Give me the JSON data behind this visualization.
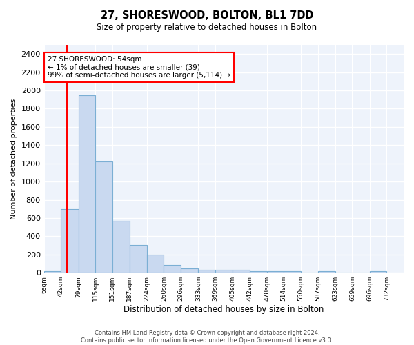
{
  "title1": "27, SHORESWOOD, BOLTON, BL1 7DD",
  "title2": "Size of property relative to detached houses in Bolton",
  "xlabel": "Distribution of detached houses by size in Bolton",
  "ylabel": "Number of detached properties",
  "bar_color": "#c9d9f0",
  "bar_edge_color": "#7bafd4",
  "background_color": "#eef3fb",
  "grid_color": "#ffffff",
  "annotation_text": "27 SHORESWOOD: 54sqm\n← 1% of detached houses are smaller (39)\n99% of semi-detached houses are larger (5,114) →",
  "redline_x": 54,
  "bins": [
    6,
    42,
    79,
    115,
    151,
    187,
    224,
    260,
    296,
    333,
    369,
    405,
    442,
    478,
    514,
    550,
    587,
    623,
    659,
    696,
    732
  ],
  "bar_heights": [
    20,
    700,
    1950,
    1220,
    570,
    305,
    200,
    85,
    45,
    35,
    35,
    35,
    20,
    20,
    20,
    0,
    20,
    0,
    0,
    20
  ],
  "ylim": [
    0,
    2500
  ],
  "yticks": [
    0,
    200,
    400,
    600,
    800,
    1000,
    1200,
    1400,
    1600,
    1800,
    2000,
    2200,
    2400
  ],
  "footnote": "Contains HM Land Registry data © Crown copyright and database right 2024.\nContains public sector information licensed under the Open Government Licence v3.0.",
  "tick_labels": [
    "6sqm",
    "42sqm",
    "79sqm",
    "115sqm",
    "151sqm",
    "187sqm",
    "224sqm",
    "260sqm",
    "296sqm",
    "333sqm",
    "369sqm",
    "405sqm",
    "442sqm",
    "478sqm",
    "514sqm",
    "550sqm",
    "587sqm",
    "623sqm",
    "659sqm",
    "696sqm",
    "732sqm"
  ]
}
